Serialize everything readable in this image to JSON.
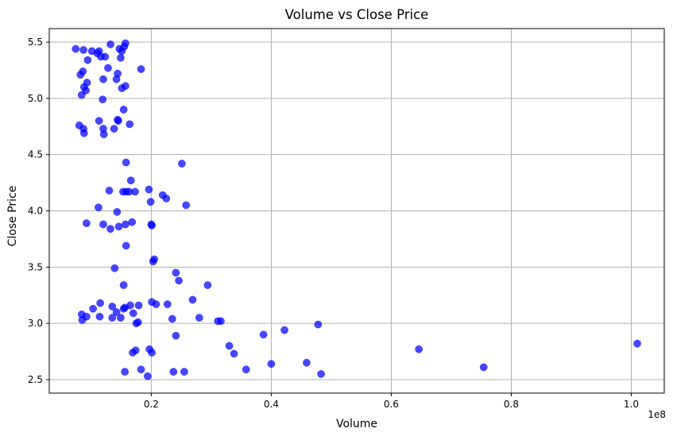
{
  "chart_data": {
    "type": "scatter",
    "title": "Volume vs Close Price",
    "xlabel": "Volume",
    "ylabel": "Close Price",
    "x_offset_label": "1e8",
    "xlim": [
      3000000,
      105500000
    ],
    "ylim": [
      2.38,
      5.62
    ],
    "x_ticks": [
      20000000,
      40000000,
      60000000,
      80000000,
      100000000
    ],
    "x_tick_labels": [
      "0.2",
      "0.4",
      "0.6",
      "0.8",
      "1.0"
    ],
    "y_ticks": [
      2.5,
      3.0,
      3.5,
      4.0,
      4.5,
      5.0,
      5.5
    ],
    "y_tick_labels": [
      "2.5",
      "3.0",
      "3.5",
      "4.0",
      "4.5",
      "5.0",
      "5.5"
    ],
    "grid": true,
    "marker_color": "#0000ff",
    "marker_alpha": 0.72,
    "points": [
      {
        "x": 7400000,
        "y": 5.44
      },
      {
        "x": 8700000,
        "y": 5.43
      },
      {
        "x": 10100000,
        "y": 5.42
      },
      {
        "x": 11000000,
        "y": 5.4
      },
      {
        "x": 11300000,
        "y": 5.42
      },
      {
        "x": 11600000,
        "y": 5.37
      },
      {
        "x": 12300000,
        "y": 5.37
      },
      {
        "x": 13200000,
        "y": 5.48
      },
      {
        "x": 14700000,
        "y": 5.44
      },
      {
        "x": 15100000,
        "y": 5.42
      },
      {
        "x": 15500000,
        "y": 5.46
      },
      {
        "x": 15700000,
        "y": 5.49
      },
      {
        "x": 14900000,
        "y": 5.36
      },
      {
        "x": 9400000,
        "y": 5.34
      },
      {
        "x": 12800000,
        "y": 5.27
      },
      {
        "x": 18300000,
        "y": 5.26
      },
      {
        "x": 8600000,
        "y": 5.24
      },
      {
        "x": 8200000,
        "y": 5.21
      },
      {
        "x": 14400000,
        "y": 5.22
      },
      {
        "x": 12000000,
        "y": 5.17
      },
      {
        "x": 14200000,
        "y": 5.17
      },
      {
        "x": 9300000,
        "y": 5.14
      },
      {
        "x": 8800000,
        "y": 5.1
      },
      {
        "x": 15700000,
        "y": 5.11
      },
      {
        "x": 15100000,
        "y": 5.09
      },
      {
        "x": 9100000,
        "y": 5.07
      },
      {
        "x": 8400000,
        "y": 5.03
      },
      {
        "x": 11900000,
        "y": 4.99
      },
      {
        "x": 15400000,
        "y": 4.9
      },
      {
        "x": 14400000,
        "y": 4.81
      },
      {
        "x": 14500000,
        "y": 4.8
      },
      {
        "x": 11300000,
        "y": 4.8
      },
      {
        "x": 8000000,
        "y": 4.76
      },
      {
        "x": 16400000,
        "y": 4.77
      },
      {
        "x": 8700000,
        "y": 4.73
      },
      {
        "x": 12000000,
        "y": 4.73
      },
      {
        "x": 13800000,
        "y": 4.73
      },
      {
        "x": 8800000,
        "y": 4.69
      },
      {
        "x": 12100000,
        "y": 4.68
      },
      {
        "x": 15800000,
        "y": 4.43
      },
      {
        "x": 25100000,
        "y": 4.42
      },
      {
        "x": 16600000,
        "y": 4.27
      },
      {
        "x": 19600000,
        "y": 4.19
      },
      {
        "x": 13000000,
        "y": 4.18
      },
      {
        "x": 15300000,
        "y": 4.17
      },
      {
        "x": 15800000,
        "y": 4.17
      },
      {
        "x": 16300000,
        "y": 4.17
      },
      {
        "x": 17300000,
        "y": 4.17
      },
      {
        "x": 21900000,
        "y": 4.14
      },
      {
        "x": 22500000,
        "y": 4.11
      },
      {
        "x": 19900000,
        "y": 4.08
      },
      {
        "x": 25800000,
        "y": 4.05
      },
      {
        "x": 11200000,
        "y": 4.03
      },
      {
        "x": 14300000,
        "y": 3.99
      },
      {
        "x": 9200000,
        "y": 3.89
      },
      {
        "x": 12000000,
        "y": 3.88
      },
      {
        "x": 15700000,
        "y": 3.88
      },
      {
        "x": 16800000,
        "y": 3.9
      },
      {
        "x": 20000000,
        "y": 3.88
      },
      {
        "x": 20100000,
        "y": 3.87
      },
      {
        "x": 14600000,
        "y": 3.86
      },
      {
        "x": 13200000,
        "y": 3.84
      },
      {
        "x": 15800000,
        "y": 3.69
      },
      {
        "x": 20500000,
        "y": 3.57
      },
      {
        "x": 20300000,
        "y": 3.55
      },
      {
        "x": 13900000,
        "y": 3.49
      },
      {
        "x": 24100000,
        "y": 3.45
      },
      {
        "x": 24600000,
        "y": 3.38
      },
      {
        "x": 15400000,
        "y": 3.34
      },
      {
        "x": 29400000,
        "y": 3.34
      },
      {
        "x": 26900000,
        "y": 3.21
      },
      {
        "x": 11500000,
        "y": 3.18
      },
      {
        "x": 20100000,
        "y": 3.19
      },
      {
        "x": 20800000,
        "y": 3.17
      },
      {
        "x": 22700000,
        "y": 3.17
      },
      {
        "x": 16500000,
        "y": 3.16
      },
      {
        "x": 17900000,
        "y": 3.16
      },
      {
        "x": 13500000,
        "y": 3.15
      },
      {
        "x": 10300000,
        "y": 3.13
      },
      {
        "x": 15400000,
        "y": 3.13
      },
      {
        "x": 15600000,
        "y": 3.14
      },
      {
        "x": 14200000,
        "y": 3.1
      },
      {
        "x": 17000000,
        "y": 3.09
      },
      {
        "x": 8400000,
        "y": 3.08
      },
      {
        "x": 9200000,
        "y": 3.06
      },
      {
        "x": 11400000,
        "y": 3.06
      },
      {
        "x": 13500000,
        "y": 3.05
      },
      {
        "x": 14900000,
        "y": 3.05
      },
      {
        "x": 8500000,
        "y": 3.03
      },
      {
        "x": 23500000,
        "y": 3.04
      },
      {
        "x": 28000000,
        "y": 3.05
      },
      {
        "x": 31100000,
        "y": 3.02
      },
      {
        "x": 31600000,
        "y": 3.02
      },
      {
        "x": 17500000,
        "y": 3.0
      },
      {
        "x": 17800000,
        "y": 3.01
      },
      {
        "x": 47800000,
        "y": 2.99
      },
      {
        "x": 42200000,
        "y": 2.94
      },
      {
        "x": 38700000,
        "y": 2.9
      },
      {
        "x": 24100000,
        "y": 2.89
      },
      {
        "x": 33000000,
        "y": 2.8
      },
      {
        "x": 64600000,
        "y": 2.77
      },
      {
        "x": 101000000,
        "y": 2.82
      },
      {
        "x": 17400000,
        "y": 2.76
      },
      {
        "x": 19700000,
        "y": 2.77
      },
      {
        "x": 16900000,
        "y": 2.74
      },
      {
        "x": 20100000,
        "y": 2.74
      },
      {
        "x": 33800000,
        "y": 2.73
      },
      {
        "x": 40000000,
        "y": 2.64
      },
      {
        "x": 45900000,
        "y": 2.65
      },
      {
        "x": 75400000,
        "y": 2.61
      },
      {
        "x": 35800000,
        "y": 2.59
      },
      {
        "x": 18300000,
        "y": 2.59
      },
      {
        "x": 15600000,
        "y": 2.57
      },
      {
        "x": 23700000,
        "y": 2.57
      },
      {
        "x": 25500000,
        "y": 2.57
      },
      {
        "x": 48300000,
        "y": 2.55
      },
      {
        "x": 19400000,
        "y": 2.53
      }
    ]
  }
}
